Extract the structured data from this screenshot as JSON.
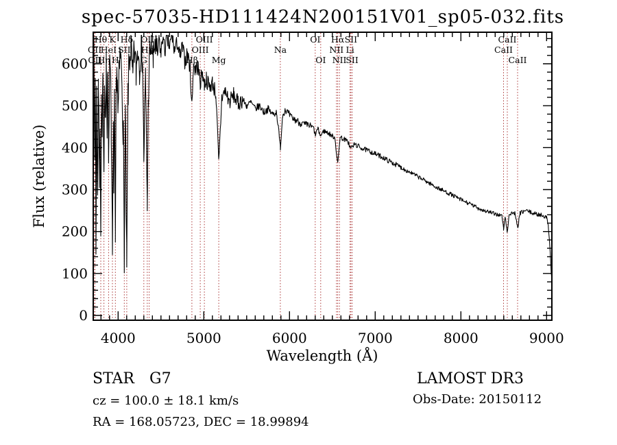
{
  "header": {
    "title": "spec-57035-HD111424N200151V01_sp05-032.fits"
  },
  "annotations": {
    "object_type": "STAR",
    "subclass": "G7",
    "cz_line": "cz = 100.0 ± 18.1 km/s",
    "radec_line": "RA = 168.05723, DEC =  18.99894",
    "survey": "LAMOST DR3",
    "obs_date": "Obs-Date: 20150112"
  },
  "colors": {
    "spectrum": "#000000",
    "frame": "#000000",
    "line_marker": "#aa3333",
    "background": "#ffffff"
  },
  "chart_data": {
    "type": "line",
    "title": "spec-57035-HD111424N200151V01_sp05-032.fits",
    "xlabel": "Wavelength (Å)",
    "ylabel": "Flux (relative)",
    "xlim": [
      3710,
      9062
    ],
    "ylim": [
      0,
      675
    ],
    "x_ticks": [
      4000,
      5000,
      6000,
      7000,
      8000,
      9000
    ],
    "y_ticks": [
      0,
      100,
      200,
      300,
      400,
      500,
      600
    ],
    "x_minor_step": 100,
    "y_minor_step": 20,
    "grid": false,
    "noise_seed": 7,
    "noise_profile": [
      [
        3710,
        4460,
        50
      ],
      [
        4460,
        5450,
        20
      ],
      [
        5450,
        6250,
        9
      ],
      [
        6250,
        7300,
        6
      ],
      [
        7300,
        9010,
        5
      ],
      [
        9010,
        9062,
        3
      ]
    ],
    "spectral_lines": [
      {
        "label": "OII",
        "wavelength": 3727,
        "row": 2
      },
      {
        "label": "OII",
        "wavelength": 3729,
        "row": 3
      },
      {
        "label": "Hθ",
        "wavelength": 3798,
        "row": 1
      },
      {
        "label": "Hη",
        "wavelength": 3835,
        "row": 3
      },
      {
        "label": "HeI",
        "wavelength": 3889,
        "row": 2
      },
      {
        "label": "K",
        "wavelength": 3934,
        "row": 1
      },
      {
        "label": "H",
        "wavelength": 3968,
        "row": 3
      },
      {
        "label": "SII",
        "wavelength": 4072,
        "row": 2
      },
      {
        "label": "Hδ",
        "wavelength": 4101,
        "row": 1
      },
      {
        "label": "G",
        "wavelength": 4300,
        "row": 3
      },
      {
        "label": "Hγ",
        "wavelength": 4340,
        "row": 2
      },
      {
        "label": "OIII",
        "wavelength": 4363,
        "row": 1
      },
      {
        "label": "Hβ",
        "wavelength": 4861,
        "row": 3
      },
      {
        "label": "OIII",
        "wavelength": 4959,
        "row": 2
      },
      {
        "label": "OIII",
        "wavelength": 5007,
        "row": 1
      },
      {
        "label": "Mg",
        "wavelength": 5175,
        "row": 3
      },
      {
        "label": "Na",
        "wavelength": 5893,
        "row": 2
      },
      {
        "label": "OI",
        "wavelength": 6300,
        "row": 1
      },
      {
        "label": "OI",
        "wavelength": 6364,
        "row": 3
      },
      {
        "label": "NII",
        "wavelength": 6548,
        "row": 2
      },
      {
        "label": "Hα",
        "wavelength": 6563,
        "row": 1
      },
      {
        "label": "NII",
        "wavelength": 6583,
        "row": 3
      },
      {
        "label": "Li",
        "wavelength": 6707,
        "row": 2
      },
      {
        "label": "SII",
        "wavelength": 6716,
        "row": 1
      },
      {
        "label": "SII",
        "wavelength": 6731,
        "row": 3
      },
      {
        "label": "CaII",
        "wavelength": 8498,
        "row": 2
      },
      {
        "label": "CaII",
        "wavelength": 8542,
        "row": 1
      },
      {
        "label": "CaII",
        "wavelength": 8662,
        "row": 3
      }
    ],
    "series": [
      {
        "name": "flux",
        "anchors": [
          [
            3710,
            590
          ],
          [
            3718,
            630
          ],
          [
            3727,
            380
          ],
          [
            3734,
            560
          ],
          [
            3742,
            170
          ],
          [
            3750,
            520
          ],
          [
            3760,
            300
          ],
          [
            3770,
            560
          ],
          [
            3782,
            330
          ],
          [
            3790,
            480
          ],
          [
            3798,
            210
          ],
          [
            3806,
            500
          ],
          [
            3814,
            420
          ],
          [
            3822,
            560
          ],
          [
            3835,
            300
          ],
          [
            3842,
            580
          ],
          [
            3850,
            480
          ],
          [
            3862,
            600
          ],
          [
            3872,
            430
          ],
          [
            3880,
            560
          ],
          [
            3889,
            380
          ],
          [
            3898,
            560
          ],
          [
            3910,
            620
          ],
          [
            3920,
            460
          ],
          [
            3934,
            140
          ],
          [
            3944,
            420
          ],
          [
            3950,
            330
          ],
          [
            3958,
            500
          ],
          [
            3968,
            165
          ],
          [
            3978,
            520
          ],
          [
            3990,
            580
          ],
          [
            4000,
            480
          ],
          [
            4010,
            560
          ],
          [
            4026,
            620
          ],
          [
            4046,
            560
          ],
          [
            4062,
            420
          ],
          [
            4072,
            150
          ],
          [
            4085,
            480
          ],
          [
            4101,
            100
          ],
          [
            4115,
            520
          ],
          [
            4130,
            610
          ],
          [
            4150,
            640
          ],
          [
            4170,
            560
          ],
          [
            4190,
            630
          ],
          [
            4210,
            580
          ],
          [
            4230,
            640
          ],
          [
            4250,
            600
          ],
          [
            4270,
            650
          ],
          [
            4286,
            610
          ],
          [
            4300,
            380
          ],
          [
            4320,
            560
          ],
          [
            4340,
            270
          ],
          [
            4355,
            540
          ],
          [
            4370,
            620
          ],
          [
            4390,
            650
          ],
          [
            4410,
            600
          ],
          [
            4430,
            655
          ],
          [
            4455,
            610
          ],
          [
            4480,
            660
          ],
          [
            4500,
            620
          ],
          [
            4520,
            665
          ],
          [
            4545,
            630
          ],
          [
            4570,
            660
          ],
          [
            4600,
            640
          ],
          [
            4630,
            665
          ],
          [
            4660,
            630
          ],
          [
            4690,
            650
          ],
          [
            4720,
            615
          ],
          [
            4750,
            640
          ],
          [
            4780,
            605
          ],
          [
            4810,
            625
          ],
          [
            4840,
            590
          ],
          [
            4861,
            500
          ],
          [
            4880,
            600
          ],
          [
            4900,
            585
          ],
          [
            4930,
            595
          ],
          [
            4959,
            555
          ],
          [
            4985,
            580
          ],
          [
            5007,
            550
          ],
          [
            5030,
            565
          ],
          [
            5060,
            545
          ],
          [
            5100,
            555
          ],
          [
            5140,
            530
          ],
          [
            5175,
            360
          ],
          [
            5210,
            520
          ],
          [
            5250,
            535
          ],
          [
            5300,
            510
          ],
          [
            5350,
            525
          ],
          [
            5400,
            505
          ],
          [
            5450,
            515
          ],
          [
            5500,
            500
          ],
          [
            5550,
            508
          ],
          [
            5600,
            492
          ],
          [
            5650,
            500
          ],
          [
            5700,
            485
          ],
          [
            5750,
            492
          ],
          [
            5800,
            480
          ],
          [
            5850,
            485
          ],
          [
            5893,
            400
          ],
          [
            5920,
            478
          ],
          [
            5950,
            492
          ],
          [
            5990,
            480
          ],
          [
            6030,
            470
          ],
          [
            6080,
            465
          ],
          [
            6130,
            458
          ],
          [
            6180,
            455
          ],
          [
            6230,
            452
          ],
          [
            6280,
            448
          ],
          [
            6300,
            430
          ],
          [
            6330,
            445
          ],
          [
            6364,
            428
          ],
          [
            6400,
            440
          ],
          [
            6450,
            435
          ],
          [
            6500,
            428
          ],
          [
            6530,
            424
          ],
          [
            6563,
            360
          ],
          [
            6590,
            425
          ],
          [
            6640,
            420
          ],
          [
            6690,
            412
          ],
          [
            6707,
            400
          ],
          [
            6731,
            402
          ],
          [
            6760,
            408
          ],
          [
            6800,
            404
          ],
          [
            6850,
            398
          ],
          [
            6900,
            394
          ],
          [
            6950,
            390
          ],
          [
            7000,
            385
          ],
          [
            7060,
            380
          ],
          [
            7120,
            373
          ],
          [
            7180,
            366
          ],
          [
            7240,
            360
          ],
          [
            7300,
            353
          ],
          [
            7360,
            346
          ],
          [
            7420,
            340
          ],
          [
            7480,
            333
          ],
          [
            7540,
            326
          ],
          [
            7600,
            319
          ],
          [
            7660,
            312
          ],
          [
            7720,
            305
          ],
          [
            7780,
            299
          ],
          [
            7840,
            293
          ],
          [
            7900,
            287
          ],
          [
            7960,
            280
          ],
          [
            8020,
            274
          ],
          [
            8080,
            268
          ],
          [
            8140,
            262
          ],
          [
            8200,
            256
          ],
          [
            8260,
            251
          ],
          [
            8320,
            247
          ],
          [
            8380,
            243
          ],
          [
            8440,
            240
          ],
          [
            8480,
            237
          ],
          [
            8498,
            205
          ],
          [
            8515,
            235
          ],
          [
            8542,
            198
          ],
          [
            8560,
            238
          ],
          [
            8600,
            245
          ],
          [
            8630,
            243
          ],
          [
            8662,
            208
          ],
          [
            8690,
            243
          ],
          [
            8730,
            248
          ],
          [
            8770,
            250
          ],
          [
            8810,
            246
          ],
          [
            8850,
            243
          ],
          [
            8890,
            241
          ],
          [
            8930,
            240
          ],
          [
            8970,
            237
          ],
          [
            9000,
            233
          ],
          [
            9020,
            215
          ],
          [
            9040,
            160
          ],
          [
            9055,
            100
          ],
          [
            9062,
            80
          ]
        ]
      }
    ]
  }
}
